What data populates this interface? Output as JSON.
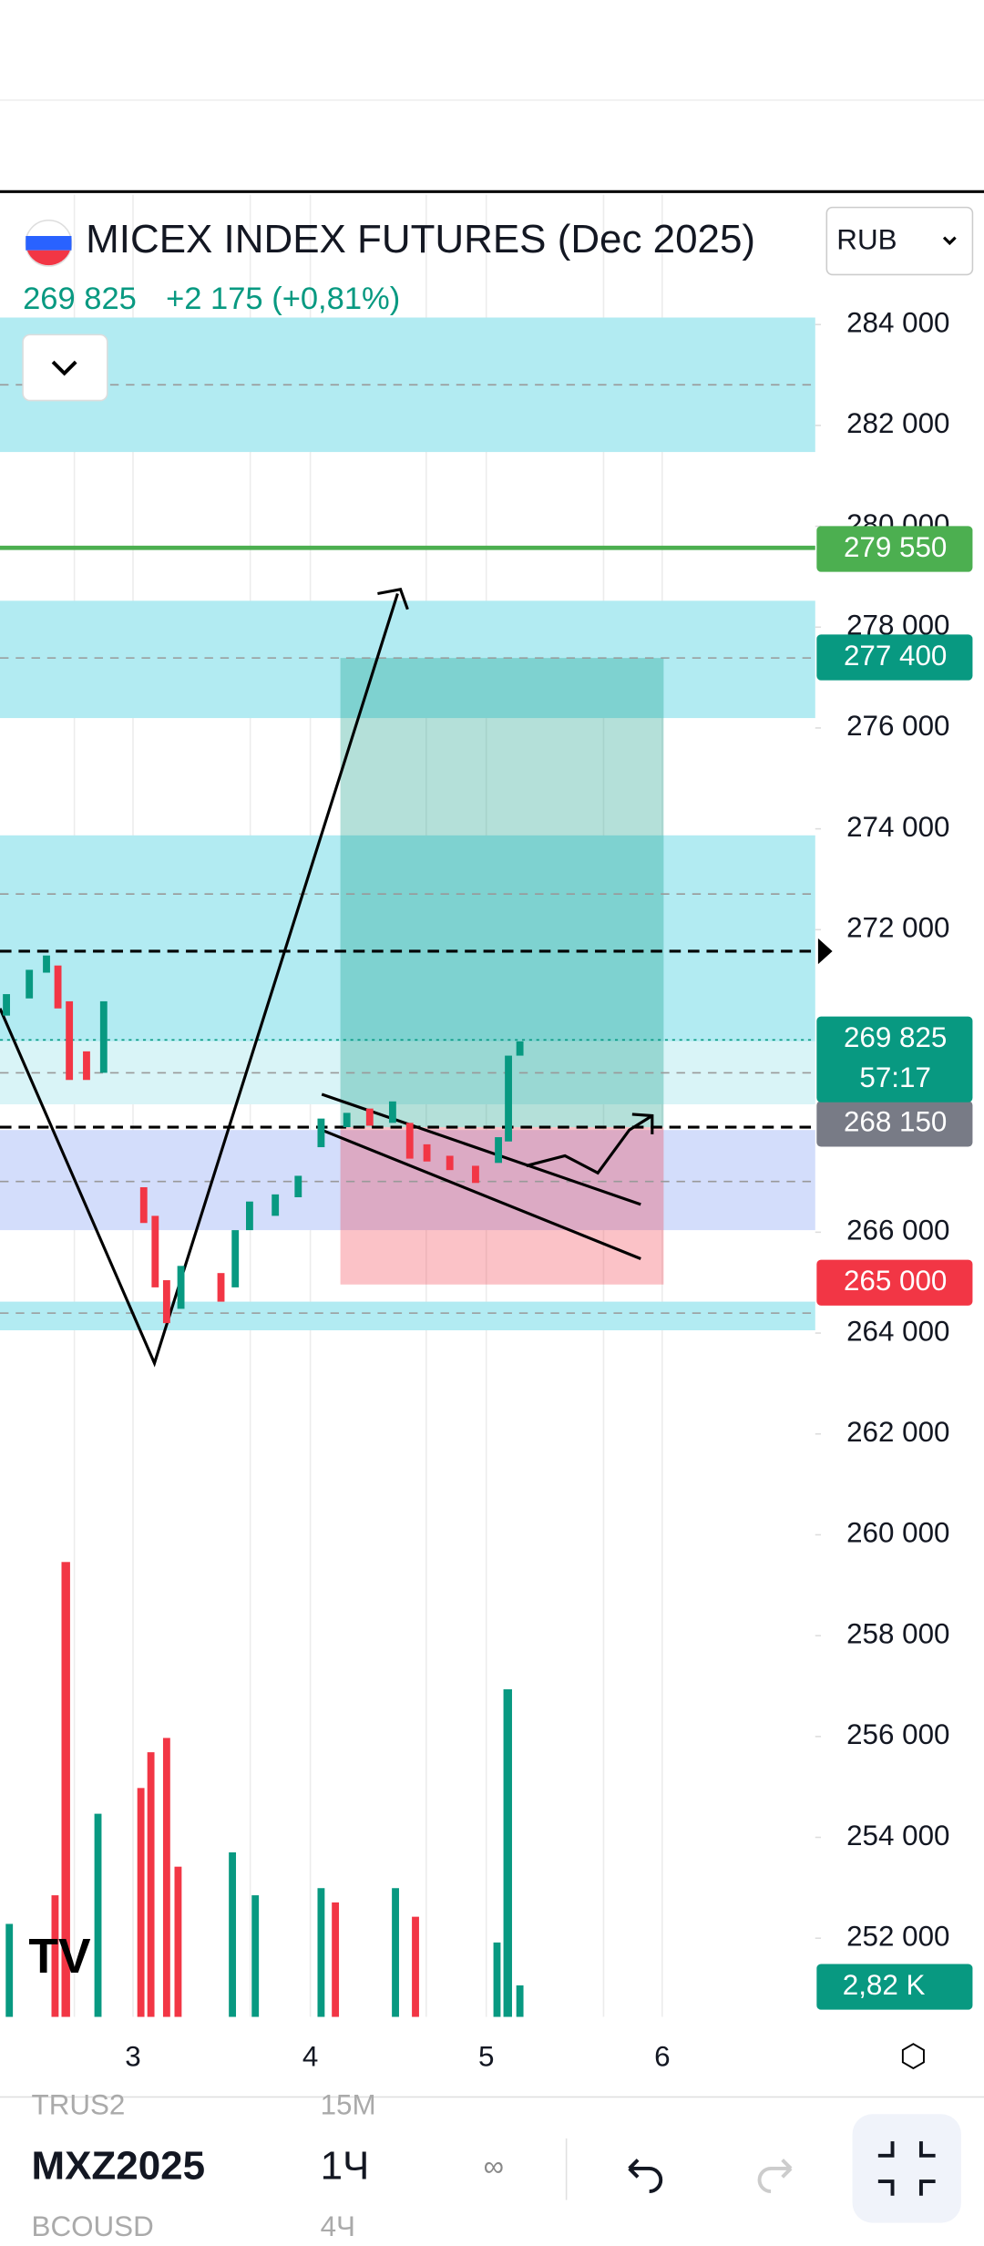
{
  "header": {
    "symbol_title": "MICEX INDEX FUTURES (Dec 2025)",
    "last_price": "269 825",
    "change": "+2 175 (+0,81%)",
    "currency": "RUB"
  },
  "price_axis": {
    "ylim": [
      250440,
      286550
    ],
    "yticks": [
      {
        "value": 284000,
        "label": "284 000"
      },
      {
        "value": 282000,
        "label": "282 000"
      },
      {
        "value": 280000,
        "label": "280 000"
      },
      {
        "value": 278000,
        "label": "278 000"
      },
      {
        "value": 276000,
        "label": "276 000"
      },
      {
        "value": 274000,
        "label": "274 000"
      },
      {
        "value": 272000,
        "label": "272 000"
      },
      {
        "value": 266000,
        "label": "266 000"
      },
      {
        "value": 264000,
        "label": "264 000"
      },
      {
        "value": 262000,
        "label": "262 000"
      },
      {
        "value": 260000,
        "label": "260 000"
      },
      {
        "value": 258000,
        "label": "258 000"
      },
      {
        "value": 256000,
        "label": "256 000"
      },
      {
        "value": 254000,
        "label": "254 000"
      },
      {
        "value": 252000,
        "label": "252 000"
      }
    ]
  },
  "price_labels": [
    {
      "value": 279550,
      "label": "279 550",
      "color": "#4caf50"
    },
    {
      "value": 277400,
      "label": "277 400",
      "color": "#089981"
    },
    {
      "value": 268150,
      "label": "268 150",
      "color": "#787b86"
    },
    {
      "value": 265000,
      "label": "265 000",
      "color": "#f23645"
    }
  ],
  "last_label": {
    "value": 269825,
    "label": "269 825",
    "countdown": "57:17",
    "color": "#089981"
  },
  "volume_label": "2,82 K",
  "time_axis": [
    "3",
    "4",
    "5",
    "6"
  ],
  "toolbar": {
    "symbol": "MXZ2025",
    "interval": "1Ч",
    "above": [
      "TRUS2",
      "15M"
    ],
    "below": [
      "BCOUSD",
      "4Ч"
    ]
  }
}
